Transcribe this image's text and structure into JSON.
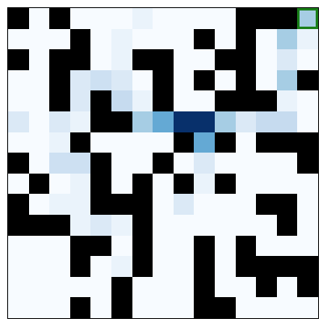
{
  "board": {
    "rows": 15,
    "cols": 15,
    "palette": {
      "0": "#f7fbff",
      "1": "#000000",
      "2": "#eaf3fb",
      "3": "#dbe9f6",
      "4": "#cde0f2",
      "5": "#b7d4ea",
      "6": "#a6cde4",
      "7": "#64a9d4",
      "8": "#08306b",
      "9": "#c6dbef"
    },
    "grid": [
      [
        1,
        0,
        1,
        0,
        0,
        0,
        2,
        0,
        0,
        0,
        0,
        1,
        1,
        1,
        6
      ],
      [
        0,
        0,
        0,
        1,
        0,
        2,
        0,
        0,
        0,
        1,
        0,
        1,
        0,
        6,
        2
      ],
      [
        1,
        0,
        1,
        1,
        0,
        2,
        1,
        1,
        0,
        0,
        1,
        1,
        0,
        3,
        0
      ],
      [
        0,
        0,
        1,
        3,
        4,
        3,
        0,
        1,
        0,
        1,
        0,
        1,
        0,
        6,
        1
      ],
      [
        0,
        0,
        1,
        3,
        1,
        9,
        2,
        1,
        0,
        0,
        1,
        1,
        1,
        2,
        0
      ],
      [
        3,
        0,
        3,
        2,
        1,
        1,
        6,
        7,
        8,
        8,
        6,
        3,
        9,
        9,
        0
      ],
      [
        0,
        0,
        2,
        1,
        0,
        0,
        0,
        0,
        1,
        7,
        1,
        0,
        1,
        1,
        1
      ],
      [
        1,
        0,
        4,
        4,
        1,
        0,
        0,
        1,
        0,
        3,
        0,
        0,
        0,
        0,
        1
      ],
      [
        0,
        1,
        0,
        2,
        1,
        0,
        1,
        0,
        1,
        2,
        1,
        0,
        0,
        0,
        0
      ],
      [
        1,
        0,
        2,
        2,
        1,
        1,
        1,
        0,
        3,
        0,
        0,
        0,
        1,
        1,
        0
      ],
      [
        1,
        1,
        1,
        2,
        3,
        2,
        1,
        0,
        0,
        0,
        0,
        0,
        0,
        1,
        0
      ],
      [
        0,
        0,
        0,
        1,
        1,
        0,
        1,
        0,
        0,
        1,
        0,
        1,
        0,
        0,
        0
      ],
      [
        0,
        0,
        0,
        1,
        0,
        2,
        1,
        0,
        0,
        1,
        0,
        1,
        1,
        1,
        1
      ],
      [
        0,
        0,
        0,
        0,
        0,
        1,
        0,
        0,
        0,
        1,
        0,
        0,
        1,
        0,
        1
      ],
      [
        0,
        0,
        0,
        1,
        0,
        1,
        0,
        0,
        0,
        1,
        1,
        0,
        0,
        0,
        0
      ]
    ],
    "agent": {
      "row": 0,
      "col": 14,
      "border_color": "#1a7f1a"
    }
  }
}
